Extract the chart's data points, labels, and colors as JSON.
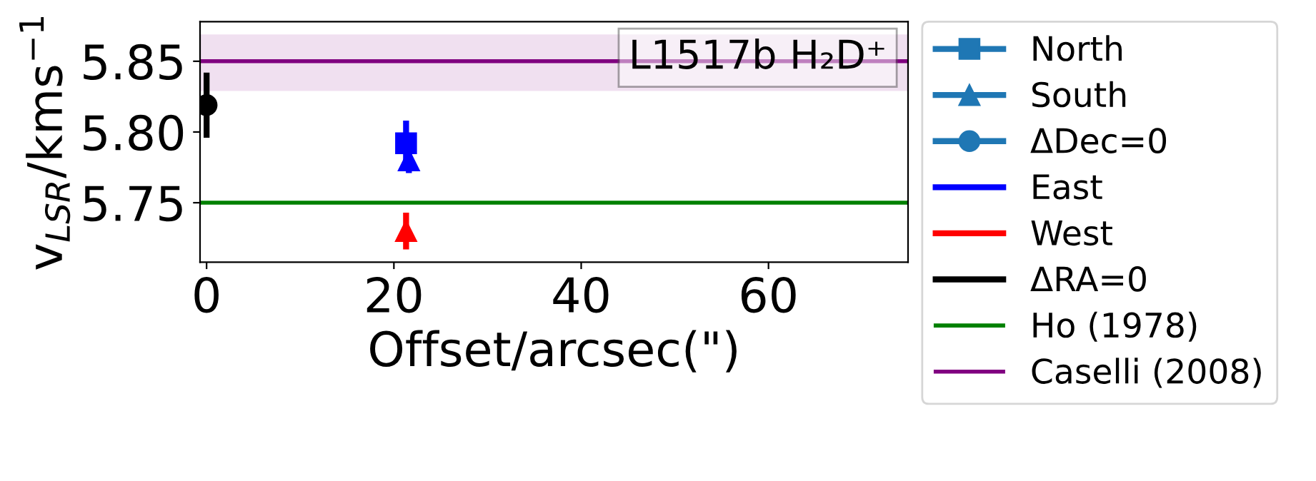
{
  "chart_data": {
    "type": "scatter",
    "xlabel": "Offset/arcsec(\")",
    "ylabel": "v$_{LSR}$/kms$^{−1}$",
    "annotations": [
      "L1517b H₂D⁺"
    ],
    "xlim": [
      -0.7,
      74.9
    ],
    "ylim": [
      5.708,
      5.878
    ],
    "xticks": [
      0,
      20,
      40,
      60
    ],
    "yticks": [
      5.75,
      {
        "value": 5.8,
        "label": "5.80"
      },
      5.85
    ],
    "grid": false,
    "legend": "right",
    "series": [
      {
        "name": "North",
        "type": "line",
        "color": "#1f77b4",
        "marker": "square"
      },
      {
        "name": "South",
        "type": "line",
        "color": "#1f77b4",
        "marker": "triangle"
      },
      {
        "name": "ΔDec=0",
        "type": "line",
        "color": "#1f77b4",
        "marker": "circle"
      },
      {
        "name": "East",
        "type": "line",
        "color": "#0000ff",
        "marker": "none"
      },
      {
        "name": "West",
        "type": "line",
        "color": "#ff0000",
        "marker": "none"
      },
      {
        "name": "ΔRA=0",
        "type": "line",
        "color": "#000000",
        "marker": "none"
      },
      {
        "color": "#000000",
        "marker": "circle",
        "x": [
          0
        ],
        "values": [
          5.819
        ],
        "errors": [
          0.023
        ]
      },
      {
        "color": "#0000ff",
        "marker": "square",
        "x": [
          21.3
        ],
        "values": [
          5.792
        ],
        "errors": [
          0.016
        ]
      },
      {
        "color": "#0000ff",
        "marker": "triangle",
        "x": [
          21.6
        ],
        "values": [
          5.78
        ],
        "errors": [
          0.009
        ]
      },
      {
        "color": "#ff0000",
        "marker": "triangle",
        "x": [
          21.3
        ],
        "values": [
          5.73
        ],
        "errors": [
          0.013
        ]
      }
    ],
    "ref_lines": [
      {
        "axis": "y",
        "value": 5.75,
        "label": "Ho (1978)",
        "color": "#008000"
      },
      {
        "axis": "y",
        "value": 5.85,
        "label": "Caselli (2008)",
        "color": "#800080"
      }
    ],
    "bands": [
      {
        "axis": "y",
        "from": 5.829,
        "to": 5.869,
        "color": "#800080"
      }
    ]
  }
}
